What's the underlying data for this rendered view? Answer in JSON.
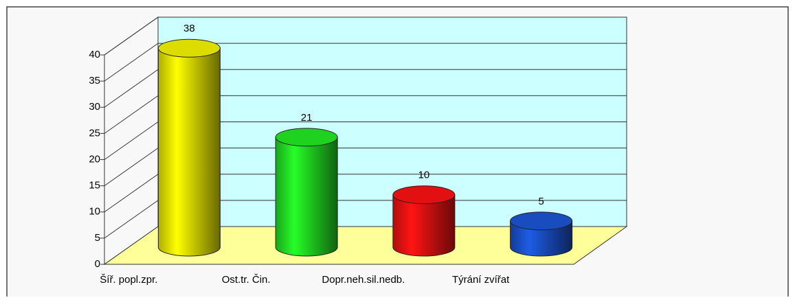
{
  "chart_data": {
    "type": "bar3d",
    "categories": [
      "Šíř. popl.zpr.",
      "Ost.tr. Čin.",
      "Dopr.neh.sil.nedb.",
      "Týrání zvířat"
    ],
    "values": [
      38,
      21,
      10,
      5
    ],
    "colors": [
      "#e8e800",
      "#22dd22",
      "#ee1111",
      "#1a50c8"
    ],
    "ylim": [
      0,
      40
    ],
    "yticks": [
      0,
      5,
      10,
      15,
      20,
      25,
      30,
      35,
      40
    ],
    "grid": true
  }
}
